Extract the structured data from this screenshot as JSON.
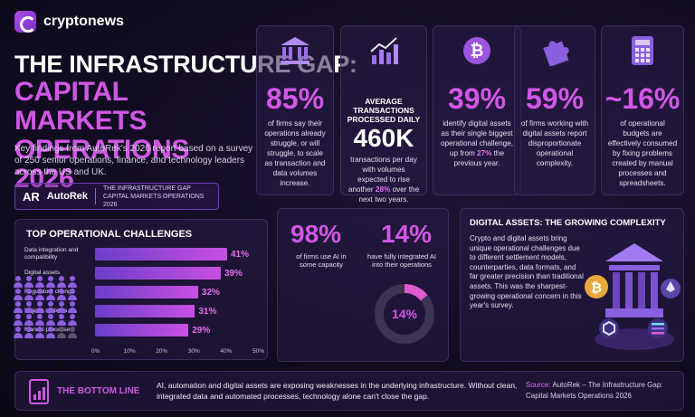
{
  "brand": {
    "name": "cryptonews"
  },
  "title": {
    "line1": "THE INFRASTRUCTURE GAP:",
    "line2": "CAPITAL MARKETS OPERATIONS 2026"
  },
  "intro": "Key findings from AutoRek's 2026 report based on a survey of 250 senior operations, finance, and technology leaders across the US and UK.",
  "autorek": {
    "mark": "AR",
    "name": "AutoRek",
    "tag_line1": "THE INFRASTRUCTURE GAP",
    "tag_line2": "CAPITAL MARKETS OPERATIONS 2026"
  },
  "stats": [
    {
      "icon": "bank-icon",
      "value": "85%",
      "text": "of firms say their operations already struggle, or will struggle, to scale as transaction and data volumes increase."
    },
    {
      "icon": "chart-up-icon",
      "heading": "AVERAGE TRANSACTIONS PROCESSED DAILY",
      "value": "460K",
      "text_a": "transactions per day with volumes expected to rise another",
      "highlight": "28%",
      "text_b": "over the next two years."
    },
    {
      "icon": "bitcoin-icon",
      "value": "39%",
      "text_a": "identify digital assets as their single biggest operational challenge, up from",
      "highlight": "27%",
      "text_b": "the previous year."
    },
    {
      "icon": "puzzle-icon",
      "value": "59%",
      "text": "of firms working with digital assets report disproportionate operational complexity."
    },
    {
      "icon": "calculator-icon",
      "value": "~16%",
      "text": "of operational budgets are effectively consumed by fixing problems created by manual processes and spreadsheets."
    }
  ],
  "challenges": {
    "title": "TOP OPERATIONAL CHALLENGES",
    "axis_ticks": [
      "0%",
      "10%",
      "20%",
      "30%",
      "40%",
      "50%"
    ]
  },
  "chart_data": {
    "type": "bar",
    "title": "TOP OPERATIONAL CHALLENGES",
    "categories": [
      "Data integration and compatibility",
      "Digital assets",
      "Regulatory change",
      "Legacy systems",
      "Manual processes"
    ],
    "values": [
      41,
      39,
      32,
      31,
      29
    ],
    "value_labels": [
      "41%",
      "39%",
      "32%",
      "31%",
      "29%"
    ],
    "xlim": [
      0,
      50
    ],
    "orientation": "horizontal"
  },
  "ai": {
    "use_value": "98%",
    "use_text": "of firms use AI in some capacity",
    "integrated_value": "14%",
    "integrated_text": "have fully integrated AI into their operations",
    "donut_label": "14%",
    "donut_fraction": 0.14,
    "people_total": 30,
    "people_highlighted": 29
  },
  "digital_assets": {
    "title": "DIGITAL ASSETS: THE GROWING COMPLEXITY",
    "text": "Crypto and digital assets bring unique operational challenges due to different settlement models, counterparties, data formats, and far greater precision than traditional assets. This was the sharpest-growing operational concern in this year's survey."
  },
  "bottom": {
    "title": "THE BOTTOM LINE",
    "text": "AI, automation and digital assets are exposing weaknesses in the underlying infrastructure. Without clean, integrated data and automated processes, technology alone can't close the gap.",
    "source_label": "Source:",
    "source_text": "AutoRek – The Infrastructure Gap: Capital Markets Operations 2026"
  },
  "colors": {
    "accent": "#d257e6",
    "purple": "#8a5fe0",
    "bg": "#120c22"
  }
}
